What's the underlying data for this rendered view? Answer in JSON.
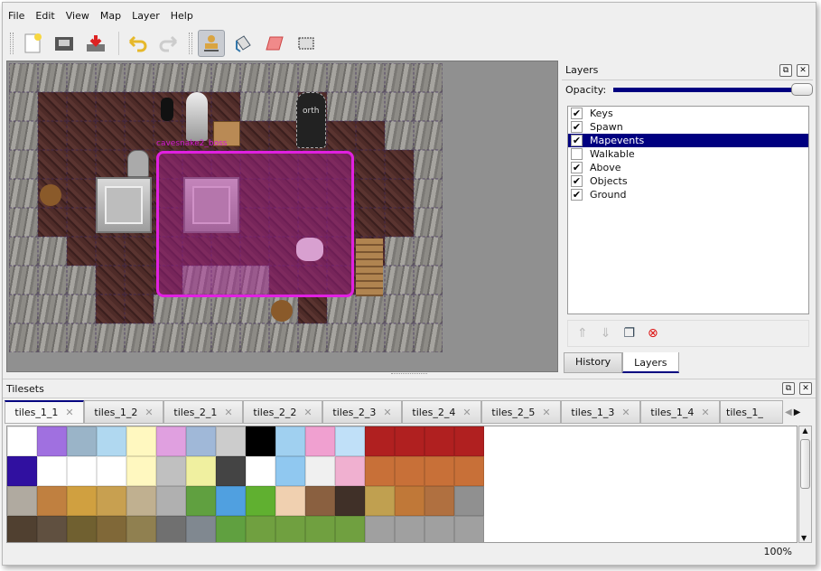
{
  "menu": [
    "File",
    "Edit",
    "View",
    "Map",
    "Layer",
    "Help"
  ],
  "toolbar": {
    "icons": [
      "new-file-icon",
      "open-folder-icon",
      "save-icon",
      "undo-icon",
      "redo-icon",
      "stamp-brush-icon",
      "bucket-fill-icon",
      "eraser-icon",
      "rectangle-select-icon"
    ],
    "active": "stamp-brush-icon"
  },
  "map": {
    "object_label": "cavesnake2_boss",
    "sign_label": "orth",
    "selection_color": "#e020e0"
  },
  "layers_panel": {
    "title": "Layers",
    "opacity_label": "Opacity:",
    "opacity": 1.0,
    "layers": [
      {
        "name": "Keys",
        "visible": true
      },
      {
        "name": "Spawn",
        "visible": true
      },
      {
        "name": "Mapevents",
        "visible": true,
        "selected": true
      },
      {
        "name": "Walkable",
        "visible": false
      },
      {
        "name": "Above",
        "visible": true
      },
      {
        "name": "Objects",
        "visible": true
      },
      {
        "name": "Ground",
        "visible": true
      }
    ],
    "buttons": [
      "raise-layer-icon",
      "lower-layer-icon",
      "duplicate-layer-icon",
      "delete-layer-icon"
    ],
    "tabs": [
      "History",
      "Layers"
    ],
    "active_tab": "Layers"
  },
  "tilesets": {
    "title": "Tilesets",
    "tabs": [
      "tiles_1_1",
      "tiles_1_2",
      "tiles_2_1",
      "tiles_2_2",
      "tiles_2_3",
      "tiles_2_4",
      "tiles_2_5",
      "tiles_1_3",
      "tiles_1_4",
      "tiles_1_"
    ],
    "active": "tiles_1_1"
  },
  "status": {
    "zoom": "100%"
  },
  "colors": {
    "accent": "#000080"
  }
}
